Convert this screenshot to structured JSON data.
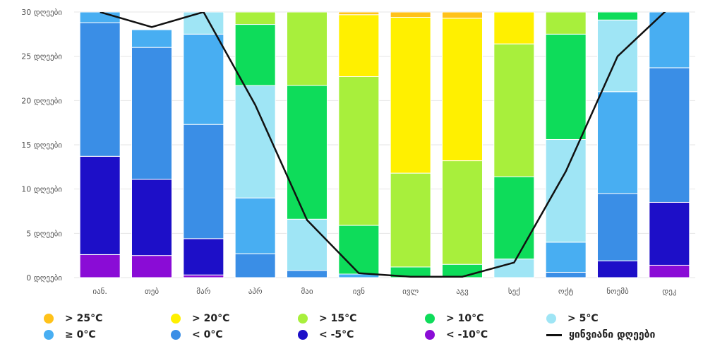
{
  "chart_data": {
    "type": "bar",
    "stacked": true,
    "categories": [
      "იან.",
      "თებ",
      "მარ",
      "აპრ",
      "მაი",
      "ივნ",
      "ივლ",
      "აგვ",
      "სექ",
      "ოქტ",
      "ნოემბ",
      "დეკ"
    ],
    "ylim": [
      0,
      30
    ],
    "yticks": [
      {
        "value": 0,
        "label": "0 დღეები"
      },
      {
        "value": 5,
        "label": "5 დღეები"
      },
      {
        "value": 10,
        "label": "10 დღეები"
      },
      {
        "value": 15,
        "label": "15 დღეები"
      },
      {
        "value": 20,
        "label": "20 დღეები"
      },
      {
        "value": 25,
        "label": "25 დღეები"
      },
      {
        "value": 30,
        "label": "30 დღეები"
      }
    ],
    "grid": true,
    "legend_position": "bottom",
    "series": [
      {
        "name": "< -10°C",
        "color": "#8a0cd6",
        "values": [
          2.6,
          2.5,
          0.3,
          0,
          0,
          0,
          0,
          0,
          0,
          0,
          0,
          1.4
        ]
      },
      {
        "name": "< -5°C",
        "color": "#1d0fc8",
        "values": [
          11.1,
          8.6,
          4.1,
          0,
          0,
          0,
          0,
          0,
          0,
          0,
          1.9,
          7.1
        ]
      },
      {
        "name": "< 0°C",
        "color": "#3a8ee6",
        "values": [
          15.1,
          14.9,
          12.9,
          2.7,
          0.8,
          0,
          0,
          0,
          0,
          0.6,
          7.6,
          15.2
        ]
      },
      {
        "name": "≥ 0°C",
        "color": "#48aef2",
        "values": [
          1.2,
          2.0,
          10.2,
          6.3,
          0,
          0.4,
          0,
          0,
          0,
          3.4,
          11.5,
          6.3
        ]
      },
      {
        "name": "> 5°C",
        "color": "#9fe5f5",
        "values": [
          0,
          0,
          2.5,
          12.7,
          5.8,
          0,
          0,
          0,
          2.1,
          11.6,
          8.1,
          0
        ]
      },
      {
        "name": "> 10°C",
        "color": "#0edc5a",
        "values": [
          0,
          0,
          0,
          6.9,
          15.1,
          5.5,
          1.2,
          1.5,
          9.3,
          11.9,
          0.9,
          0
        ]
      },
      {
        "name": "> 15°C",
        "color": "#a8ef3c",
        "values": [
          0,
          0,
          0,
          1.4,
          8.3,
          16.8,
          10.6,
          11.7,
          15.0,
          2.5,
          0,
          0
        ]
      },
      {
        "name": "> 20°C",
        "color": "#fff000",
        "values": [
          0,
          0,
          0,
          0,
          0,
          7.0,
          17.6,
          16.1,
          3.6,
          0,
          0,
          0
        ]
      },
      {
        "name": "> 25°C",
        "color": "#ffc21a",
        "values": [
          0,
          0,
          0,
          0,
          0,
          0.3,
          0.6,
          0.7,
          0,
          0,
          0,
          0
        ]
      }
    ],
    "line_series": {
      "name": "ყინვიანი დღეები",
      "color": "#111111",
      "values": [
        30,
        28.3,
        30,
        19.5,
        6.5,
        0.5,
        0.1,
        0.1,
        1.7,
        12,
        25,
        30.5
      ]
    },
    "legend": [
      {
        "label": "> 25°C",
        "color": "#ffc21a",
        "kind": "dot"
      },
      {
        "label": "> 20°C",
        "color": "#fff000",
        "kind": "dot"
      },
      {
        "label": "> 15°C",
        "color": "#a8ef3c",
        "kind": "dot"
      },
      {
        "label": "> 10°C",
        "color": "#0edc5a",
        "kind": "dot"
      },
      {
        "label": "> 5°C",
        "color": "#9fe5f5",
        "kind": "dot"
      },
      {
        "label": "≥ 0°C",
        "color": "#48aef2",
        "kind": "dot"
      },
      {
        "label": "< 0°C",
        "color": "#3a8ee6",
        "kind": "dot"
      },
      {
        "label": "< -5°C",
        "color": "#1d0fc8",
        "kind": "dot"
      },
      {
        "label": "< -10°C",
        "color": "#8a0cd6",
        "kind": "dot"
      },
      {
        "label": "ყინვიანი დღეები",
        "color": "#111111",
        "kind": "line"
      }
    ]
  }
}
